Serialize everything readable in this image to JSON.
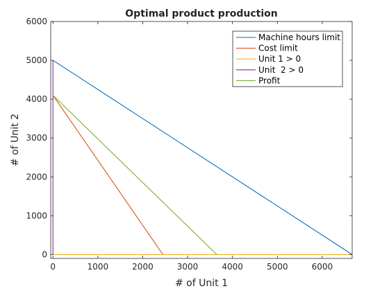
{
  "chart_data": {
    "type": "line",
    "title": "Optimal product production",
    "xlabel": "# of Unit 1",
    "ylabel": "# of Unit 2",
    "xlim": [
      -50,
      6667
    ],
    "ylim": [
      -100,
      6000
    ],
    "xticks": [
      0,
      1000,
      2000,
      3000,
      4000,
      5000,
      6000
    ],
    "yticks": [
      0,
      1000,
      2000,
      3000,
      4000,
      5000,
      6000
    ],
    "grid": false,
    "legend_position": "top-right",
    "series": [
      {
        "name": "Machine hours limit",
        "color": "#0072bd",
        "x": [
          0,
          6667
        ],
        "y": [
          5000,
          0
        ]
      },
      {
        "name": "Cost limit",
        "color": "#d95319",
        "x": [
          0,
          2450
        ],
        "y": [
          4100,
          0
        ]
      },
      {
        "name": "Unit 1 > 0",
        "color": "#edb120",
        "x": [
          0,
          6667
        ],
        "y": [
          0,
          0
        ]
      },
      {
        "name": "Unit  2 > 0",
        "color": "#7e2f8e",
        "x": [
          0,
          0
        ],
        "y": [
          0,
          5000
        ]
      },
      {
        "name": "Profit",
        "color": "#77ac30",
        "x": [
          0,
          3650
        ],
        "y": [
          4100,
          0
        ]
      }
    ]
  }
}
